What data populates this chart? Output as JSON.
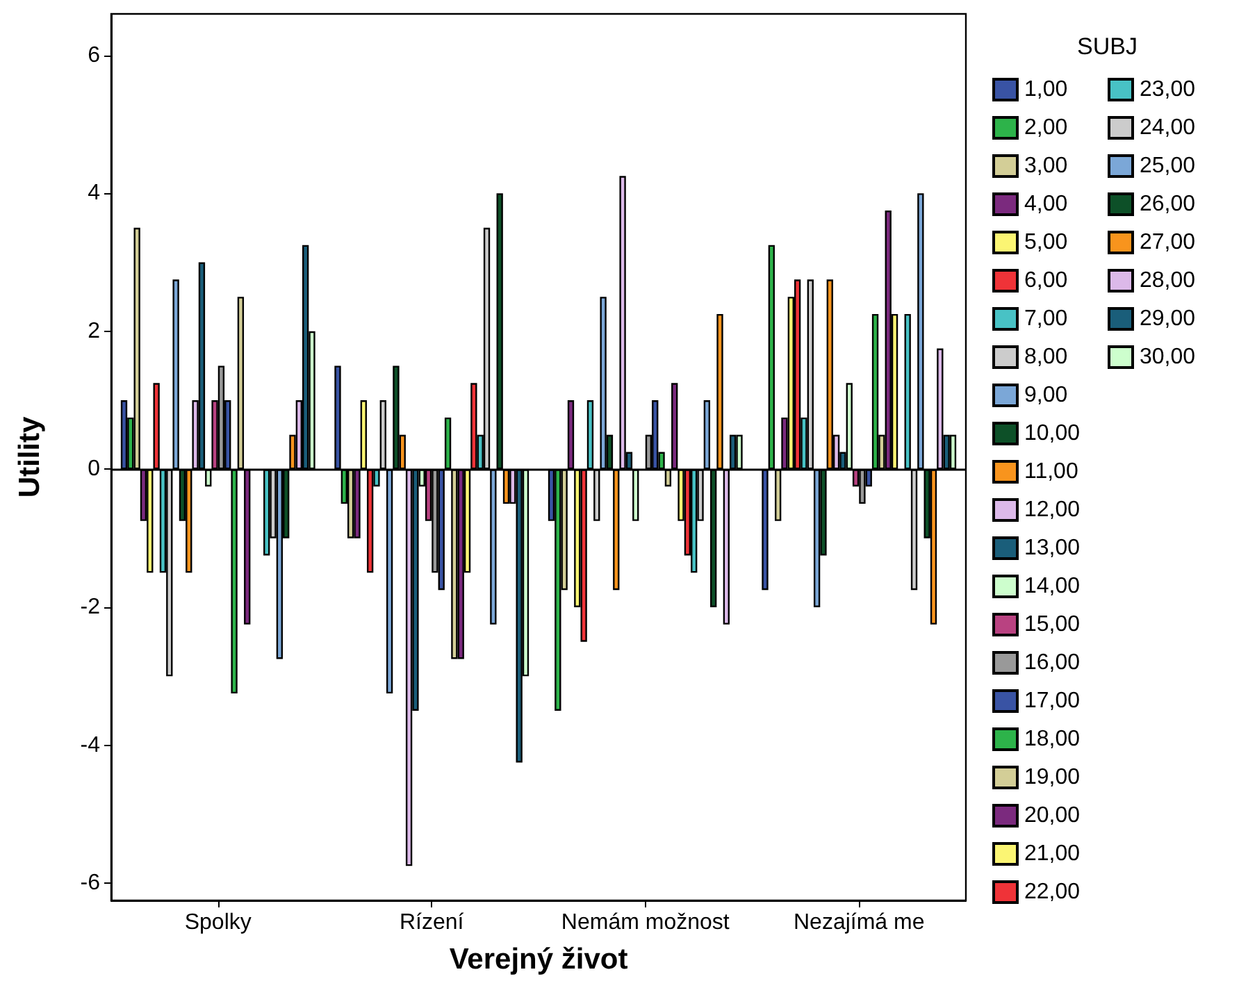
{
  "chart_data": {
    "type": "bar",
    "xlabel": "Verejný život",
    "ylabel": "Utility",
    "legend_title": "SUBJ",
    "categories": [
      "Spolky",
      "Rízení",
      "Nemám možnost",
      "Nezajímá me"
    ],
    "ylim": [
      -6.25,
      6.6
    ],
    "yticks": [
      -6,
      -4,
      -2,
      0,
      2,
      4,
      6
    ],
    "grid": false,
    "legend": "right",
    "ref_lines": [
      {
        "axis": "y",
        "value": 0,
        "color": "#000000"
      }
    ],
    "series": [
      {
        "name": "1,00",
        "color": "#3953a4",
        "values": [
          1.0,
          1.5,
          -0.75,
          -1.75
        ]
      },
      {
        "name": "2,00",
        "color": "#2db34a",
        "values": [
          0.75,
          -0.5,
          -3.5,
          3.25
        ]
      },
      {
        "name": "3,00",
        "color": "#d3ce97",
        "values": [
          3.5,
          -1.0,
          -1.75,
          -0.75
        ]
      },
      {
        "name": "4,00",
        "color": "#7b2a7e",
        "values": [
          -0.75,
          -1.0,
          1.0,
          0.75
        ]
      },
      {
        "name": "5,00",
        "color": "#fbf573",
        "values": [
          -1.5,
          1.0,
          -2.0,
          2.5
        ]
      },
      {
        "name": "6,00",
        "color": "#ef3338",
        "values": [
          1.25,
          -1.5,
          -2.5,
          2.75
        ]
      },
      {
        "name": "7,00",
        "color": "#48c2c5",
        "values": [
          -1.5,
          -0.25,
          1.0,
          0.75
        ]
      },
      {
        "name": "8,00",
        "color": "#cccccc",
        "values": [
          -3.0,
          1.0,
          -0.75,
          2.75
        ]
      },
      {
        "name": "9,00",
        "color": "#7ba7d7",
        "values": [
          2.75,
          -3.25,
          2.5,
          -2.0
        ]
      },
      {
        "name": "10,00",
        "color": "#0d5028",
        "values": [
          -0.75,
          1.5,
          0.5,
          -1.25
        ]
      },
      {
        "name": "11,00",
        "color": "#f8941d",
        "values": [
          -1.5,
          0.5,
          -1.75,
          2.75
        ]
      },
      {
        "name": "12,00",
        "color": "#dcb9e9",
        "values": [
          1.0,
          -5.75,
          4.25,
          0.5
        ]
      },
      {
        "name": "13,00",
        "color": "#1a5e7a",
        "values": [
          3.0,
          -3.5,
          0.25,
          0.25
        ]
      },
      {
        "name": "14,00",
        "color": "#cdfecd",
        "values": [
          -0.25,
          -0.25,
          -0.75,
          1.25
        ]
      },
      {
        "name": "15,00",
        "color": "#b94281",
        "values": [
          1.0,
          -0.75,
          null,
          -0.25
        ]
      },
      {
        "name": "16,00",
        "color": "#999999",
        "values": [
          1.5,
          -1.5,
          0.5,
          -0.5
        ]
      },
      {
        "name": "17,00",
        "color": "#3953a4",
        "values": [
          1.0,
          -1.75,
          1.0,
          -0.25
        ]
      },
      {
        "name": "18,00",
        "color": "#2db34a",
        "values": [
          -3.25,
          0.75,
          0.25,
          2.25
        ]
      },
      {
        "name": "19,00",
        "color": "#d3ce97",
        "values": [
          2.5,
          -2.75,
          -0.25,
          0.5
        ]
      },
      {
        "name": "20,00",
        "color": "#7b2a7e",
        "values": [
          -2.25,
          -2.75,
          1.25,
          3.75
        ]
      },
      {
        "name": "21,00",
        "color": "#fbf573",
        "values": [
          null,
          -1.5,
          -0.75,
          2.25
        ]
      },
      {
        "name": "22,00",
        "color": "#ef3338",
        "values": [
          null,
          1.25,
          -1.25,
          null
        ]
      },
      {
        "name": "23,00",
        "color": "#48c2c5",
        "values": [
          -1.25,
          0.5,
          -1.5,
          2.25
        ]
      },
      {
        "name": "24,00",
        "color": "#cccccc",
        "values": [
          -1.0,
          3.5,
          -0.75,
          -1.75
        ]
      },
      {
        "name": "25,00",
        "color": "#7ba7d7",
        "values": [
          -2.75,
          -2.25,
          1.0,
          4.0
        ]
      },
      {
        "name": "26,00",
        "color": "#0d5028",
        "values": [
          -1.0,
          4.0,
          -2.0,
          -1.0
        ]
      },
      {
        "name": "27,00",
        "color": "#f8941d",
        "values": [
          0.5,
          -0.5,
          2.25,
          -2.25
        ]
      },
      {
        "name": "28,00",
        "color": "#dcb9e9",
        "values": [
          1.0,
          -0.5,
          -2.25,
          1.75
        ]
      },
      {
        "name": "29,00",
        "color": "#1a5e7a",
        "values": [
          3.25,
          -4.25,
          0.5,
          0.5
        ]
      },
      {
        "name": "30,00",
        "color": "#cdfecd",
        "values": [
          2.0,
          -3.0,
          0.5,
          0.5
        ]
      }
    ]
  }
}
